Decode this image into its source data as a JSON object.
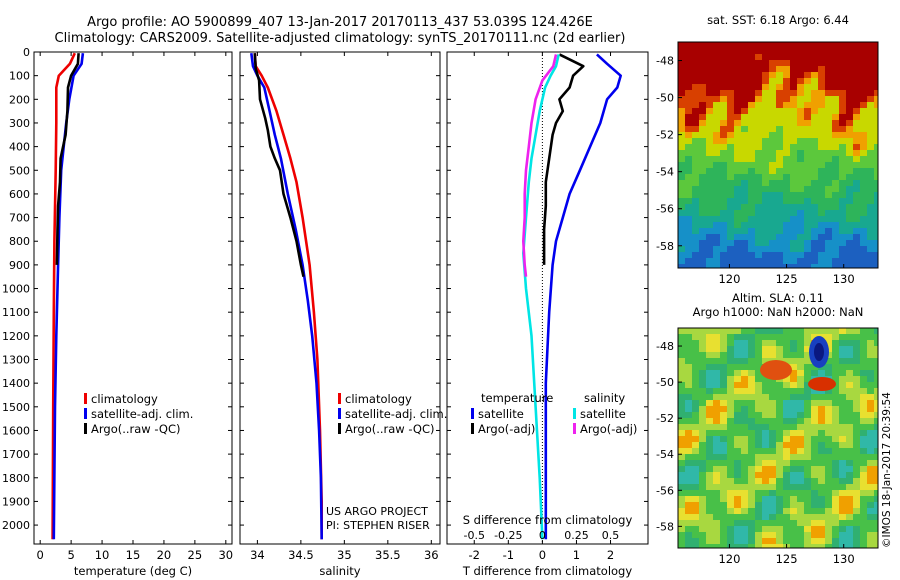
{
  "header": {
    "line1": "Argo profile: AO 5900899_407 13-Jan-2017 20170113_437 53.039S 124.426E",
    "line2": "Climatology: CARS2009. Satellite-adjusted climatology: synTS_20170111.nc (2d earlier)"
  },
  "colors": {
    "climatology": "#ee0000",
    "satellite": "#0000ee",
    "argo": "#000000",
    "sal_satellite": "#00e5e5",
    "sal_argo": "#ee22ee"
  },
  "credits": {
    "line1": "US ARGO PROJECT",
    "line2": "PI: STEPHEN RISER"
  },
  "watermark": "©IMOS 18-Jan-2017 20:39:54",
  "chart_data": [
    {
      "type": "line",
      "xlabel": "temperature (deg C)",
      "xlim": [
        -1,
        31
      ],
      "xticks": [
        0,
        5,
        10,
        15,
        20,
        25,
        30
      ],
      "ylim": [
        0,
        2080
      ],
      "yticks": [
        0,
        100,
        200,
        300,
        400,
        500,
        600,
        700,
        800,
        900,
        1000,
        1100,
        1200,
        1300,
        1400,
        1500,
        1600,
        1700,
        1800,
        1900,
        2000
      ],
      "legend": [
        "climatology",
        "satellite-adj. clim.",
        "Argo(..raw -QC)"
      ],
      "series": [
        {
          "name": "climatology",
          "color": "#ee0000",
          "points": [
            [
              5.6,
              5
            ],
            [
              4.8,
              50
            ],
            [
              3.0,
              100
            ],
            [
              2.6,
              150
            ],
            [
              2.6,
              300
            ],
            [
              2.5,
              500
            ],
            [
              2.3,
              800
            ],
            [
              2.2,
              1100
            ],
            [
              2.1,
              1500
            ],
            [
              2.0,
              2060
            ]
          ]
        },
        {
          "name": "satellite-adj. clim.",
          "color": "#0000ee",
          "points": [
            [
              6.9,
              5
            ],
            [
              6.7,
              50
            ],
            [
              5.4,
              100
            ],
            [
              4.7,
              200
            ],
            [
              4.2,
              300
            ],
            [
              3.8,
              400
            ],
            [
              3.4,
              500
            ],
            [
              3.1,
              700
            ],
            [
              2.9,
              900
            ],
            [
              2.6,
              1200
            ],
            [
              2.4,
              1500
            ],
            [
              2.2,
              2060
            ]
          ]
        },
        {
          "name": "Argo(..raw -QC)",
          "color": "#000000",
          "points": [
            [
              6.2,
              5
            ],
            [
              6.1,
              50
            ],
            [
              5.0,
              100
            ],
            [
              4.5,
              150
            ],
            [
              4.4,
              250
            ],
            [
              4.1,
              350
            ],
            [
              3.3,
              450
            ],
            [
              3.2,
              550
            ],
            [
              2.9,
              650
            ],
            [
              2.8,
              750
            ],
            [
              2.7,
              900
            ]
          ]
        }
      ]
    },
    {
      "type": "line",
      "xlabel": "salinity",
      "xlim": [
        33.8,
        36.1
      ],
      "xticks": [
        34,
        34.5,
        35,
        35.5,
        36
      ],
      "ylim": [
        0,
        2080
      ],
      "legend": [
        "climatology",
        "satellite-adj. clim.",
        "Argo(..raw -QC)"
      ],
      "series": [
        {
          "name": "climatology",
          "color": "#ee0000",
          "points": [
            [
              33.97,
              5
            ],
            [
              33.98,
              60
            ],
            [
              34.05,
              100
            ],
            [
              34.12,
              150
            ],
            [
              34.22,
              250
            ],
            [
              34.3,
              350
            ],
            [
              34.38,
              450
            ],
            [
              34.45,
              550
            ],
            [
              34.52,
              700
            ],
            [
              34.6,
              900
            ],
            [
              34.65,
              1100
            ],
            [
              34.69,
              1300
            ],
            [
              34.72,
              1600
            ],
            [
              34.74,
              1900
            ],
            [
              34.74,
              2060
            ]
          ]
        },
        {
          "name": "satellite-adj. clim.",
          "color": "#0000ee",
          "points": [
            [
              33.93,
              5
            ],
            [
              33.95,
              60
            ],
            [
              34.0,
              100
            ],
            [
              34.08,
              150
            ],
            [
              34.14,
              250
            ],
            [
              34.2,
              350
            ],
            [
              34.27,
              450
            ],
            [
              34.35,
              600
            ],
            [
              34.44,
              750
            ],
            [
              34.52,
              900
            ],
            [
              34.58,
              1050
            ],
            [
              34.63,
              1200
            ],
            [
              34.68,
              1400
            ],
            [
              34.71,
              1600
            ],
            [
              34.73,
              1800
            ],
            [
              34.74,
              2060
            ]
          ]
        },
        {
          "name": "Argo(..raw -QC)",
          "color": "#000000",
          "points": [
            [
              33.97,
              5
            ],
            [
              33.98,
              70
            ],
            [
              34.02,
              120
            ],
            [
              34.03,
              200
            ],
            [
              34.09,
              280
            ],
            [
              34.12,
              330
            ],
            [
              34.15,
              400
            ],
            [
              34.2,
              450
            ],
            [
              34.26,
              500
            ],
            [
              34.3,
              600
            ],
            [
              34.38,
              700
            ],
            [
              34.45,
              800
            ],
            [
              34.5,
              900
            ],
            [
              34.53,
              950
            ]
          ]
        }
      ]
    },
    {
      "type": "line",
      "xlabel": "T difference from climatology",
      "xlabel_top": "S difference from climatology",
      "xlim": [
        -2.8,
        3.1
      ],
      "xticks": [
        -2,
        -1,
        0,
        1,
        2
      ],
      "xticks_top": [
        -0.5,
        -0.25,
        0,
        0.25,
        0.5
      ],
      "ylim": [
        0,
        2080
      ],
      "legend_titles": [
        "temperature",
        "salinity"
      ],
      "legend": [
        "satellite",
        "Argo(-adj)",
        "satellite",
        "Argo(-adj)"
      ],
      "series": [
        {
          "name": "satellite",
          "color": "#0000ee",
          "points": [
            [
              1.6,
              10
            ],
            [
              1.9,
              50
            ],
            [
              2.3,
              100
            ],
            [
              2.2,
              150
            ],
            [
              1.9,
              200
            ],
            [
              1.7,
              300
            ],
            [
              1.4,
              400
            ],
            [
              1.1,
              500
            ],
            [
              0.8,
              600
            ],
            [
              0.6,
              700
            ],
            [
              0.4,
              800
            ],
            [
              0.3,
              900
            ],
            [
              0.2,
              1100
            ],
            [
              0.1,
              1400
            ],
            [
              0.1,
              1700
            ],
            [
              0.1,
              2060
            ]
          ]
        },
        {
          "name": "Argo(-adj)",
          "color": "#000000",
          "points": [
            [
              0.5,
              10
            ],
            [
              1.2,
              60
            ],
            [
              0.9,
              100
            ],
            [
              0.8,
              150
            ],
            [
              0.5,
              200
            ],
            [
              0.6,
              250
            ],
            [
              0.4,
              300
            ],
            [
              0.3,
              350
            ],
            [
              0.2,
              450
            ],
            [
              0.1,
              550
            ],
            [
              0.1,
              650
            ],
            [
              0.05,
              750
            ],
            [
              0.05,
              900
            ]
          ]
        },
        {
          "name": "satellite",
          "color": "#00e5e5",
          "points": [
            [
              0.12,
              10
            ],
            [
              0.1,
              60
            ],
            [
              0.06,
              100
            ],
            [
              0.02,
              150
            ],
            [
              -0.02,
              250
            ],
            [
              -0.05,
              350
            ],
            [
              -0.08,
              450
            ],
            [
              -0.1,
              550
            ],
            [
              -0.12,
              700
            ],
            [
              -0.14,
              850
            ],
            [
              -0.12,
              1000
            ],
            [
              -0.08,
              1200
            ],
            [
              -0.05,
              1500
            ],
            [
              -0.02,
              1800
            ],
            [
              0.0,
              2060
            ]
          ]
        },
        {
          "name": "Argo(-adj)",
          "color": "#ee22ee",
          "points": [
            [
              0.1,
              10
            ],
            [
              0.08,
              60
            ],
            [
              0.0,
              120
            ],
            [
              -0.05,
              200
            ],
            [
              -0.08,
              300
            ],
            [
              -0.1,
              400
            ],
            [
              -0.12,
              500
            ],
            [
              -0.13,
              600
            ],
            [
              -0.13,
              700
            ],
            [
              -0.14,
              800
            ],
            [
              -0.13,
              900
            ],
            [
              -0.12,
              950
            ]
          ]
        }
      ]
    },
    {
      "type": "heatmap",
      "title": "sat. SST: 6.18  Argo: 6.44",
      "xticks": [
        120,
        125,
        130
      ],
      "yticks": [
        -48,
        -50,
        -52,
        -54,
        -56,
        -58
      ],
      "xlim": [
        115.5,
        133
      ],
      "ylim": [
        -59.2,
        -47
      ]
    },
    {
      "type": "heatmap",
      "title": "Altim. SLA: 0.11",
      "subtitle": "Argo h1000: NaN  h2000: NaN",
      "xticks": [
        120,
        125,
        130
      ],
      "yticks": [
        -48,
        -50,
        -52,
        -54,
        -56,
        -58
      ],
      "xlim": [
        115.5,
        133
      ],
      "ylim": [
        -59.2,
        -47
      ]
    }
  ]
}
